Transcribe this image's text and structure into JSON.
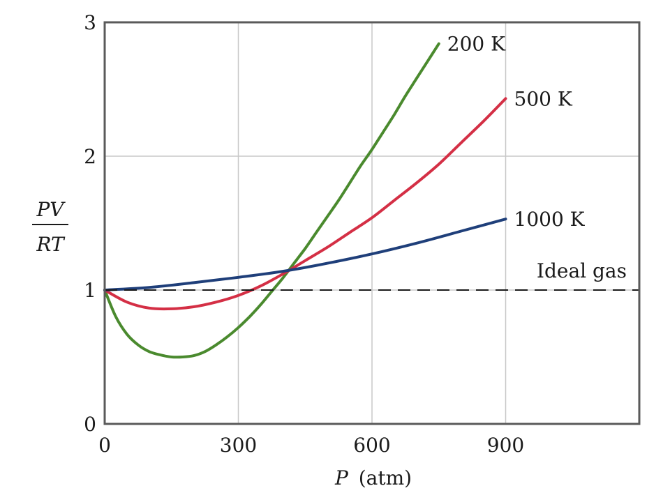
{
  "chart_data": {
    "type": "line",
    "xlabel_var": "P",
    "xlabel_unit": "(atm)",
    "ylabel_num": "PV",
    "ylabel_den": "RT",
    "xlim": [
      0,
      1200
    ],
    "ylim": [
      0,
      3
    ],
    "x_ticks": [
      0,
      300,
      600,
      900
    ],
    "y_ticks": [
      0,
      1,
      2,
      3
    ],
    "grid": true,
    "colors": {
      "200 K": "#4a8a2e",
      "500 K": "#d42f45",
      "1000 K": "#1f3f7a",
      "Ideal gas": "#1a1a1a",
      "grid": "#c8c8c8",
      "frame": "#5a5a5a"
    },
    "series": [
      {
        "name": "200 K",
        "x": [
          0,
          25,
          50,
          75,
          100,
          125,
          150,
          175,
          200,
          225,
          250,
          275,
          300,
          325,
          350,
          375,
          400,
          425,
          450,
          475,
          500,
          525,
          550,
          575,
          600,
          625,
          650,
          675,
          700,
          725,
          750
        ],
        "y": [
          1.0,
          0.8,
          0.67,
          0.59,
          0.54,
          0.515,
          0.5,
          0.5,
          0.51,
          0.54,
          0.59,
          0.65,
          0.72,
          0.8,
          0.89,
          0.99,
          1.09,
          1.2,
          1.31,
          1.43,
          1.55,
          1.67,
          1.8,
          1.93,
          2.05,
          2.18,
          2.31,
          2.45,
          2.58,
          2.71,
          2.84
        ]
      },
      {
        "name": "500 K",
        "x": [
          0,
          50,
          100,
          150,
          200,
          250,
          300,
          350,
          400,
          450,
          500,
          550,
          600,
          650,
          700,
          750,
          800,
          850,
          900
        ],
        "y": [
          1.0,
          0.91,
          0.865,
          0.86,
          0.875,
          0.91,
          0.96,
          1.03,
          1.12,
          1.22,
          1.32,
          1.43,
          1.54,
          1.67,
          1.8,
          1.94,
          2.1,
          2.26,
          2.43
        ]
      },
      {
        "name": "1000 K",
        "x": [
          0,
          100,
          200,
          300,
          400,
          500,
          600,
          700,
          800,
          900
        ],
        "y": [
          1.0,
          1.02,
          1.055,
          1.095,
          1.14,
          1.2,
          1.27,
          1.35,
          1.44,
          1.53
        ]
      },
      {
        "name": "Ideal gas",
        "x": [
          0,
          1200
        ],
        "y": [
          1.0,
          1.0
        ],
        "dashed": true
      }
    ]
  }
}
